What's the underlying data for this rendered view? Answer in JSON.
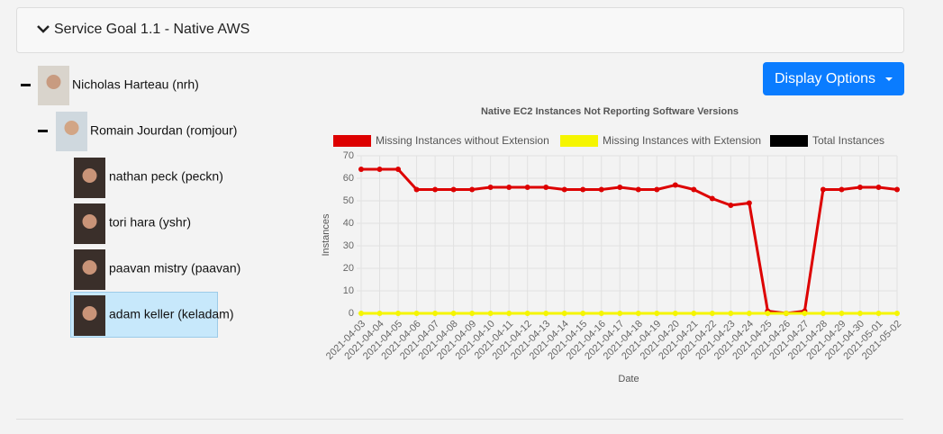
{
  "header": {
    "title": "Service Goal 1.1 - Native AWS"
  },
  "button": {
    "label": "Display Options"
  },
  "tree": {
    "name": "Nicholas Harteau (nrh)",
    "children": [
      {
        "name": "Romain Jourdan (romjour)",
        "children": [
          {
            "name": "nathan peck (peckn)"
          },
          {
            "name": "tori hara (yshr)"
          },
          {
            "name": "paavan mistry (paavan)"
          },
          {
            "name": "adam keller (keladam)"
          }
        ]
      }
    ]
  },
  "chart_data": {
    "type": "line",
    "title": "Native EC2 Instances Not Reporting Software Versions",
    "xlabel": "Date",
    "ylabel": "Instances",
    "categories": [
      "2021-04-03",
      "2021-04-04",
      "2021-04-05",
      "2021-04-06",
      "2021-04-07",
      "2021-04-08",
      "2021-04-09",
      "2021-04-10",
      "2021-04-11",
      "2021-04-12",
      "2021-04-13",
      "2021-04-14",
      "2021-04-15",
      "2021-04-16",
      "2021-04-17",
      "2021-04-18",
      "2021-04-19",
      "2021-04-20",
      "2021-04-21",
      "2021-04-22",
      "2021-04-23",
      "2021-04-24",
      "2021-04-25",
      "2021-04-26",
      "2021-04-27",
      "2021-04-28",
      "2021-04-29",
      "2021-04-30",
      "2021-05-01",
      "2021-05-02"
    ],
    "series": [
      {
        "name": "Missing Instances without Extension",
        "color": "#dd0000",
        "values": [
          64,
          64,
          64,
          55,
          55,
          55,
          55,
          56,
          56,
          56,
          56,
          55,
          55,
          55,
          56,
          55,
          55,
          57,
          55,
          51,
          48,
          49,
          1,
          0,
          1,
          55,
          55,
          56,
          56,
          55
        ]
      },
      {
        "name": "Missing Instances with Extension",
        "color": "#f5f500",
        "values": [
          0,
          0,
          0,
          0,
          0,
          0,
          0,
          0,
          0,
          0,
          0,
          0,
          0,
          0,
          0,
          0,
          0,
          0,
          0,
          0,
          0,
          0,
          0,
          0,
          0,
          0,
          0,
          0,
          0,
          0
        ]
      },
      {
        "name": "Total Instances",
        "color": "#000000",
        "values": [
          null,
          null,
          null,
          null,
          null,
          null,
          null,
          null,
          null,
          null,
          null,
          null,
          null,
          null,
          null,
          null,
          null,
          null,
          null,
          null,
          null,
          null,
          null,
          null,
          null,
          null,
          null,
          null,
          null,
          null
        ]
      }
    ],
    "ylim": [
      0,
      70
    ],
    "yticks": [
      0,
      10,
      20,
      30,
      40,
      50,
      60,
      70
    ],
    "grid": true
  }
}
